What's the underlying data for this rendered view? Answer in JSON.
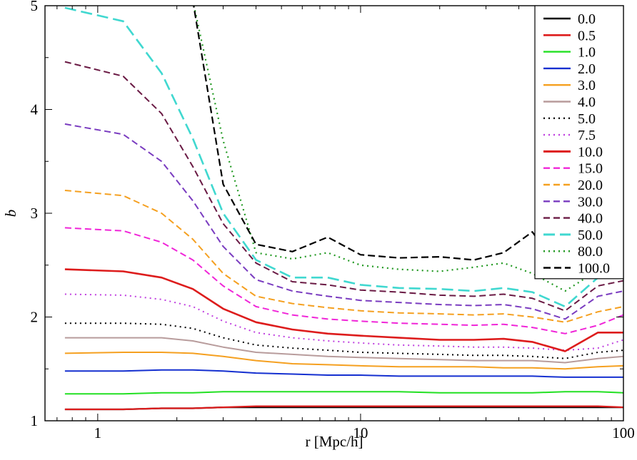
{
  "chart_data": {
    "type": "line",
    "xlabel": "r [Mpc/h]",
    "ylabel": "b",
    "xscale": "log",
    "xlim": [
      0.63,
      100
    ],
    "ylim": [
      1,
      5
    ],
    "x_ticks": [
      {
        "value": 1,
        "label": "1"
      },
      {
        "value": 10,
        "label": "10"
      },
      {
        "value": 100,
        "label": "100"
      }
    ],
    "y_ticks": [
      {
        "value": 1,
        "label": "1"
      },
      {
        "value": 2,
        "label": "2"
      },
      {
        "value": 3,
        "label": "3"
      },
      {
        "value": 4,
        "label": "4"
      },
      {
        "value": 5,
        "label": "5"
      }
    ],
    "grid": false,
    "legend_position": "top-right",
    "x": [
      0.75,
      1.25,
      1.75,
      2.3,
      3.0,
      4.0,
      5.5,
      7.5,
      10,
      14,
      20,
      27,
      35,
      45,
      60,
      80,
      100
    ],
    "series": [
      {
        "name": "0.0",
        "color": "#000000",
        "dash": "solid",
        "width": 2.2,
        "values": [
          1.11,
          1.11,
          1.12,
          1.12,
          1.13,
          1.13,
          1.13,
          1.13,
          1.13,
          1.13,
          1.13,
          1.13,
          1.13,
          1.13,
          1.13,
          1.13,
          1.13
        ]
      },
      {
        "name": "0.5",
        "color": "#dd1c1c",
        "dash": "solid",
        "width": 2.2,
        "values": [
          1.11,
          1.11,
          1.12,
          1.12,
          1.13,
          1.14,
          1.14,
          1.14,
          1.14,
          1.14,
          1.14,
          1.14,
          1.14,
          1.14,
          1.14,
          1.14,
          1.13
        ]
      },
      {
        "name": "1.0",
        "color": "#22e022",
        "dash": "solid",
        "width": 2,
        "values": [
          1.26,
          1.26,
          1.27,
          1.27,
          1.28,
          1.28,
          1.28,
          1.28,
          1.28,
          1.28,
          1.27,
          1.27,
          1.27,
          1.27,
          1.28,
          1.28,
          1.27
        ]
      },
      {
        "name": "2.0",
        "color": "#1530d0",
        "dash": "solid",
        "width": 2,
        "values": [
          1.48,
          1.48,
          1.49,
          1.49,
          1.48,
          1.46,
          1.45,
          1.44,
          1.44,
          1.43,
          1.43,
          1.43,
          1.43,
          1.43,
          1.42,
          1.42,
          1.42
        ]
      },
      {
        "name": "3.0",
        "color": "#f5a020",
        "dash": "solid",
        "width": 2,
        "values": [
          1.65,
          1.66,
          1.66,
          1.65,
          1.62,
          1.58,
          1.55,
          1.54,
          1.53,
          1.52,
          1.52,
          1.52,
          1.51,
          1.51,
          1.5,
          1.52,
          1.53
        ]
      },
      {
        "name": "4.0",
        "color": "#b89c9c",
        "dash": "solid",
        "width": 2,
        "values": [
          1.8,
          1.8,
          1.8,
          1.77,
          1.71,
          1.66,
          1.64,
          1.62,
          1.61,
          1.6,
          1.59,
          1.58,
          1.58,
          1.58,
          1.56,
          1.6,
          1.62
        ]
      },
      {
        "name": "5.0",
        "color": "#000000",
        "dash": "2,5",
        "width": 2,
        "values": [
          1.94,
          1.94,
          1.93,
          1.89,
          1.8,
          1.73,
          1.7,
          1.68,
          1.66,
          1.65,
          1.64,
          1.63,
          1.63,
          1.62,
          1.6,
          1.66,
          1.68
        ]
      },
      {
        "name": "7.5",
        "color": "#c040e0",
        "dash": "2,5",
        "width": 2,
        "values": [
          2.22,
          2.21,
          2.17,
          2.1,
          1.96,
          1.85,
          1.8,
          1.77,
          1.75,
          1.73,
          1.72,
          1.71,
          1.71,
          1.7,
          1.68,
          1.7,
          1.78
        ]
      },
      {
        "name": "10.0",
        "color": "#dd1c1c",
        "dash": "solid",
        "width": 2.6,
        "values": [
          2.46,
          2.44,
          2.38,
          2.27,
          2.08,
          1.95,
          1.88,
          1.84,
          1.82,
          1.8,
          1.78,
          1.78,
          1.79,
          1.76,
          1.67,
          1.85,
          1.85
        ]
      },
      {
        "name": "15.0",
        "color": "#f026d8",
        "dash": "9,5",
        "width": 2,
        "values": [
          2.86,
          2.83,
          2.72,
          2.55,
          2.3,
          2.1,
          2.02,
          1.98,
          1.96,
          1.94,
          1.93,
          1.92,
          1.93,
          1.9,
          1.84,
          1.92,
          2.02
        ]
      },
      {
        "name": "20.0",
        "color": "#f5a020",
        "dash": "9,5",
        "width": 2,
        "values": [
          3.22,
          3.17,
          3.0,
          2.75,
          2.42,
          2.2,
          2.13,
          2.09,
          2.06,
          2.04,
          2.03,
          2.02,
          2.03,
          2.0,
          1.95,
          2.05,
          2.1
        ]
      },
      {
        "name": "30.0",
        "color": "#7a3cc0",
        "dash": "9,5",
        "width": 2,
        "values": [
          3.86,
          3.76,
          3.5,
          3.12,
          2.68,
          2.36,
          2.25,
          2.2,
          2.16,
          2.14,
          2.12,
          2.11,
          2.12,
          2.08,
          1.98,
          2.2,
          2.25
        ]
      },
      {
        "name": "40.0",
        "color": "#6a1a44",
        "dash": "9,5",
        "width": 2,
        "values": [
          4.46,
          4.32,
          3.96,
          3.45,
          2.9,
          2.52,
          2.34,
          2.31,
          2.26,
          2.24,
          2.21,
          2.2,
          2.22,
          2.18,
          2.06,
          2.3,
          2.35
        ]
      },
      {
        "name": "50.0",
        "color": "#40d8d0",
        "dash": "16,7",
        "width": 2.6,
        "values": [
          4.98,
          4.85,
          4.35,
          3.72,
          3.0,
          2.55,
          2.38,
          2.38,
          2.31,
          2.28,
          2.27,
          2.25,
          2.28,
          2.24,
          2.1,
          2.38,
          2.4
        ]
      },
      {
        "name": "80.0",
        "color": "#229922",
        "dash": "2,5",
        "width": 2.2,
        "values": [
          null,
          null,
          null,
          5.05,
          3.7,
          2.62,
          2.56,
          2.62,
          2.5,
          2.46,
          2.44,
          2.48,
          2.52,
          2.42,
          2.25,
          2.45,
          2.5
        ]
      },
      {
        "name": "100.0",
        "color": "#000000",
        "dash": "10,5",
        "width": 2.2,
        "values": [
          null,
          null,
          null,
          5.05,
          3.28,
          2.7,
          2.63,
          2.77,
          2.6,
          2.57,
          2.58,
          2.55,
          2.62,
          2.82,
          2.4,
          2.55,
          2.6
        ]
      }
    ]
  }
}
